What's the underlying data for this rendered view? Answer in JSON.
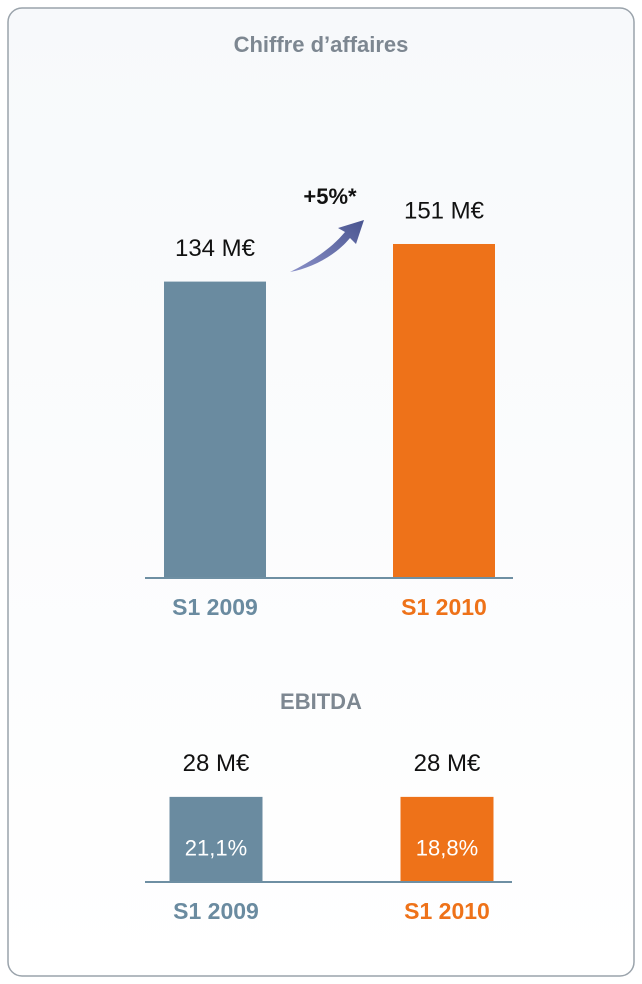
{
  "chart_data": [
    {
      "type": "bar",
      "title": "Chiffre d’affaires",
      "categories": [
        "S1 2009",
        "S1 2010"
      ],
      "values": [
        134,
        151
      ],
      "value_labels": [
        "134 M€",
        "151 M€"
      ],
      "colors": [
        "#6a8ba0",
        "#ee7219"
      ],
      "annotation": "+5%*"
    },
    {
      "type": "bar",
      "title": "EBITDA",
      "categories": [
        "S1 2009",
        "S1 2010"
      ],
      "values": [
        28,
        28
      ],
      "value_labels": [
        "28 M€",
        "28 M€"
      ],
      "margins": [
        21.1,
        18.8
      ],
      "margin_labels": [
        "21,1%",
        "18,8%"
      ],
      "colors": [
        "#6a8ba0",
        "#ee7219"
      ]
    }
  ]
}
